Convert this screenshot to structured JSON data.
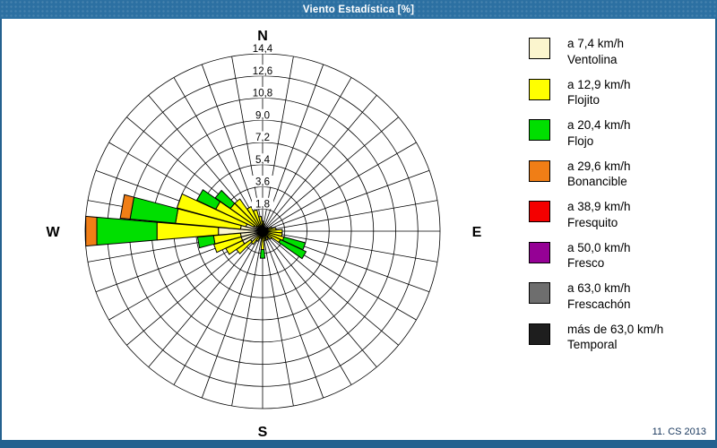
{
  "window": {
    "title": "Viento Estadística [%]"
  },
  "footer": {
    "credit": "11. CS 2013"
  },
  "colors": {
    "title_bar": "#2c70a2",
    "frame": "#24618f",
    "grid": "#000000",
    "panel_background": "#ffffff",
    "credit_text": "#16365c"
  },
  "chart_data": {
    "type": "windrose",
    "title": "Viento Estadística [%]",
    "units": "%",
    "grid": "on",
    "sector_count": 36,
    "sector_width_deg": 10,
    "compass": {
      "north": "N",
      "east": "E",
      "south": "S",
      "west": "W"
    },
    "radial_axis": {
      "min": 0,
      "max": 14.4,
      "step": 1.8,
      "tick_labels": [
        "1,8",
        "3,6",
        "5,4",
        "7,2",
        "9,0",
        "10,8",
        "12,6",
        "14,4"
      ]
    },
    "legend_position": "right",
    "speed_bins": [
      {
        "speed": "a 7,4 km/h",
        "name": "Ventolina",
        "color": "#fbf5ce"
      },
      {
        "speed": "a 12,9 km/h",
        "name": "Flojito",
        "color": "#ffff00"
      },
      {
        "speed": "a 20,4 km/h",
        "name": "Flojo",
        "color": "#00df00"
      },
      {
        "speed": "a 29,6 km/h",
        "name": "Bonancible",
        "color": "#f07e16"
      },
      {
        "speed": "a 38,9 km/h",
        "name": "Fresquito",
        "color": "#f40000"
      },
      {
        "speed": "a 50,0 km/h",
        "name": "Fresco",
        "color": "#950195"
      },
      {
        "speed": "a 63,0 km/h",
        "name": "Frescachón",
        "color": "#6e6e6e"
      },
      {
        "speed": "más de 63,0 km/h",
        "name": "Temporal",
        "color": "#1e1e1e"
      }
    ],
    "stack_order_note": "petal values arrays follow speed_bins order; bins 5-8 (Fresquito, Fresco, Frescachón, Temporal) are 0% in every sector",
    "petals": [
      {
        "dir": 0,
        "values": [
          0.2,
          0.6,
          0,
          0
        ]
      },
      {
        "dir": 10,
        "values": [
          0.2,
          0.4,
          0,
          0
        ]
      },
      {
        "dir": 20,
        "values": [
          0.1,
          0.3,
          0,
          0
        ]
      },
      {
        "dir": 30,
        "values": [
          0.1,
          0.2,
          0,
          0
        ]
      },
      {
        "dir": 40,
        "values": [
          0.1,
          0.2,
          0,
          0
        ]
      },
      {
        "dir": 50,
        "values": [
          0.1,
          0.3,
          0,
          0
        ]
      },
      {
        "dir": 60,
        "values": [
          0.1,
          0.4,
          0,
          0
        ]
      },
      {
        "dir": 70,
        "values": [
          0.2,
          0.6,
          0,
          0
        ]
      },
      {
        "dir": 80,
        "values": [
          0.3,
          0.8,
          0,
          0
        ]
      },
      {
        "dir": 90,
        "values": [
          0.4,
          1.2,
          0,
          0
        ]
      },
      {
        "dir": 100,
        "values": [
          0.3,
          1.3,
          0,
          0
        ]
      },
      {
        "dir": 110,
        "values": [
          0.4,
          1.4,
          1.8,
          0
        ]
      },
      {
        "dir": 120,
        "values": [
          0.4,
          1.2,
          2.3,
          0
        ]
      },
      {
        "dir": 130,
        "values": [
          0.2,
          0.7,
          0,
          0
        ]
      },
      {
        "dir": 140,
        "values": [
          0.2,
          0.4,
          0,
          0
        ]
      },
      {
        "dir": 150,
        "values": [
          0.2,
          0.6,
          0,
          0
        ]
      },
      {
        "dir": 160,
        "values": [
          0.1,
          0.5,
          0,
          0
        ]
      },
      {
        "dir": 170,
        "values": [
          0.2,
          0.6,
          0,
          0
        ]
      },
      {
        "dir": 180,
        "values": [
          0.3,
          1.2,
          0.7,
          0
        ]
      },
      {
        "dir": 190,
        "values": [
          0.2,
          0.4,
          0,
          0
        ]
      },
      {
        "dir": 200,
        "values": [
          0.2,
          0.4,
          0,
          0
        ]
      },
      {
        "dir": 210,
        "values": [
          0.3,
          0.6,
          0,
          0
        ]
      },
      {
        "dir": 220,
        "values": [
          0.4,
          0.9,
          0,
          0
        ]
      },
      {
        "dir": 230,
        "values": [
          1.2,
          1.4,
          0,
          0
        ]
      },
      {
        "dir": 240,
        "values": [
          1.8,
          1.5,
          0,
          0
        ]
      },
      {
        "dir": 250,
        "values": [
          1.8,
          2.3,
          0,
          0
        ]
      },
      {
        "dir": 260,
        "values": [
          1.8,
          2.2,
          1.3,
          0
        ]
      },
      {
        "dir": 270,
        "values": [
          3.6,
          5.0,
          4.9,
          0.9
        ]
      },
      {
        "dir": 280,
        "values": [
          1.8,
          5.3,
          3.7,
          0.8
        ]
      },
      {
        "dir": 290,
        "values": [
          1.4,
          5.8,
          0,
          0
        ]
      },
      {
        "dir": 300,
        "values": [
          0.8,
          3.4,
          1.7,
          0
        ]
      },
      {
        "dir": 310,
        "values": [
          0.6,
          2.6,
          1.5,
          0
        ]
      },
      {
        "dir": 320,
        "values": [
          0.5,
          2.7,
          0,
          0
        ]
      },
      {
        "dir": 330,
        "values": [
          0.4,
          1.8,
          0,
          0
        ]
      },
      {
        "dir": 340,
        "values": [
          0.3,
          1.5,
          0,
          0
        ]
      },
      {
        "dir": 350,
        "values": [
          0.2,
          1.0,
          0,
          0
        ]
      }
    ]
  }
}
